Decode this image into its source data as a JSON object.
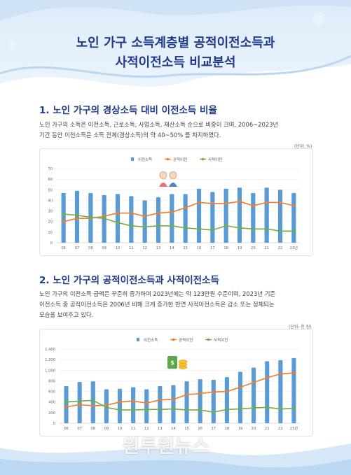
{
  "header": {
    "title_line1": "노인 가구 소득계층별 공적이전소득과",
    "title_line2": "사적이전소득 비교분석"
  },
  "section1": {
    "number": "1.",
    "title": "노인 가구의 경상소득 대비 이전소득 비율",
    "line1": "노인 가구의 소득은 이전소득, 근로소득, 사업소득, 재산소득 순으로 비중이 크며, 2006~2023년",
    "line2": "기간 동안 이전소득은 소득 전체(경상소득)의 약 40~50% 를 차지하였다.",
    "unit": "(단위: %)"
  },
  "section2": {
    "number": "2.",
    "title": "노인 가구의 공적이전소득과 사적이전소득",
    "line1": "노인 가구의 이전소득 금액은 꾸준히 증가하여 2023년에는 약 123만원 수준이며, 2023년 기준",
    "line2": "이전소득 중 공적이전소득은 2006년 비해 크게 증가한 반면 사적이전소득은 감소 또는 정체되는",
    "line3": "모습을 보여주고 있다.",
    "unit": "(단위: 천 원)"
  },
  "watermark": "원투원뉴스",
  "colors": {
    "bar": "#5b9bd5",
    "public": "#ed7d31",
    "private": "#70ad47",
    "title": "#1f3b8a"
  },
  "chart_data": [
    {
      "type": "bar",
      "categories": [
        "06",
        "07",
        "08",
        "09",
        "10",
        "11",
        "12",
        "13",
        "14",
        "15",
        "16",
        "17",
        "18",
        "19",
        "20",
        "21",
        "22",
        "23년"
      ],
      "legend": [
        "이전소득",
        "공적이전",
        "사적이전"
      ],
      "ylim": [
        0,
        70
      ],
      "yticks": [
        0,
        10,
        20,
        30,
        40,
        50,
        60,
        70
      ],
      "series": [
        {
          "name": "이전소득",
          "kind": "bar",
          "values": [
            47,
            49,
            47,
            45,
            46,
            44,
            40,
            43,
            46,
            46,
            51,
            48,
            51,
            52,
            47,
            52,
            50,
            47
          ]
        },
        {
          "name": "공적이전",
          "kind": "line",
          "values": [
            20,
            23,
            23,
            25,
            28,
            28,
            25,
            28,
            29,
            33,
            38,
            37,
            37,
            39,
            35,
            38,
            38,
            35
          ]
        },
        {
          "name": "사적이전",
          "kind": "line",
          "values": [
            27,
            26,
            24,
            23,
            19,
            16,
            15,
            16,
            16,
            14,
            13,
            12,
            16,
            14,
            13,
            13,
            11,
            11
          ]
        }
      ]
    },
    {
      "type": "bar",
      "categories": [
        "06",
        "07",
        "08",
        "09",
        "10",
        "11",
        "12",
        "13",
        "14",
        "15",
        "16",
        "17",
        "18",
        "19",
        "20",
        "21",
        "22",
        "23년"
      ],
      "legend": [
        "이전소득",
        "공적이전",
        "사적이전"
      ],
      "ylim": [
        0,
        1400
      ],
      "yticks": [
        0,
        200,
        400,
        600,
        800,
        1000,
        1200,
        1400
      ],
      "series": [
        {
          "name": "이전소득",
          "kind": "bar",
          "values": [
            700,
            780,
            790,
            640,
            650,
            680,
            640,
            700,
            720,
            790,
            830,
            820,
            870,
            970,
            1050,
            1170,
            1190,
            1230
          ]
        },
        {
          "name": "공적이전",
          "kind": "line",
          "values": [
            310,
            350,
            330,
            340,
            400,
            420,
            380,
            440,
            450,
            540,
            560,
            590,
            600,
            680,
            770,
            860,
            930,
            950
          ]
        },
        {
          "name": "사적이전",
          "kind": "line",
          "values": [
            400,
            420,
            430,
            300,
            250,
            250,
            260,
            260,
            270,
            250,
            250,
            210,
            260,
            270,
            290,
            300,
            270,
            280
          ]
        }
      ]
    }
  ]
}
